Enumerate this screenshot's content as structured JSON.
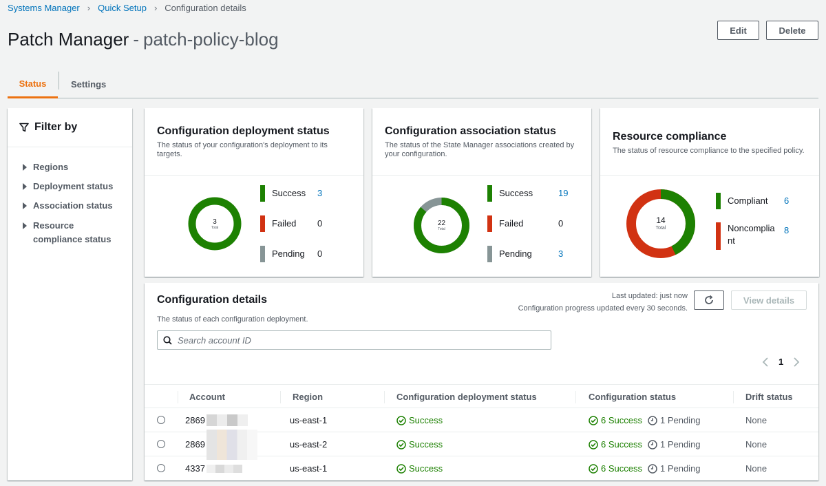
{
  "breadcrumb": {
    "items": [
      "Systems Manager",
      "Quick Setup"
    ],
    "current": "Configuration details"
  },
  "page": {
    "title_main": "Patch Manager",
    "title_dash": "-",
    "title_sub": "patch-policy-blog",
    "edit_label": "Edit",
    "delete_label": "Delete"
  },
  "tabs": [
    {
      "label": "Status",
      "active": true
    },
    {
      "label": "Settings",
      "active": false
    }
  ],
  "filter": {
    "title": "Filter by",
    "items": [
      "Regions",
      "Deployment status",
      "Association status",
      "Resource compliance status"
    ]
  },
  "cards": {
    "deployment": {
      "title": "Configuration deployment status",
      "desc": "The status of your configuration's deployment to its targets.",
      "total": "3",
      "total_label": "Total",
      "legend": [
        {
          "label": "Success",
          "value": "3",
          "color": "#1d8102",
          "link": true
        },
        {
          "label": "Failed",
          "value": "0",
          "color": "#d13212",
          "link": false
        },
        {
          "label": "Pending",
          "value": "0",
          "color": "#879596",
          "link": false
        }
      ]
    },
    "association": {
      "title": "Configuration association status",
      "desc": "The status of the State Manager associations created by your configuration.",
      "total": "22",
      "total_label": "Total",
      "legend": [
        {
          "label": "Success",
          "value": "19",
          "color": "#1d8102",
          "link": true
        },
        {
          "label": "Failed",
          "value": "0",
          "color": "#d13212",
          "link": false
        },
        {
          "label": "Pending",
          "value": "3",
          "color": "#879596",
          "link": true
        }
      ]
    },
    "compliance": {
      "title": "Resource compliance",
      "desc": "The status of resource compliance to the specified policy.",
      "total": "14",
      "total_label": "Total",
      "legend": [
        {
          "label": "Compliant",
          "value": "6",
          "color": "#1d8102",
          "link": true
        },
        {
          "label": "Noncompliant",
          "value": "8",
          "color": "#d13212",
          "link": true
        }
      ]
    }
  },
  "details": {
    "title": "Configuration details",
    "desc": "The status of each configuration deployment.",
    "last_updated": "Last updated: just now",
    "progress_note": "Configuration progress updated every 30 seconds.",
    "view_details_label": "View details",
    "search_placeholder": "Search account ID",
    "page_number": "1",
    "columns": [
      "Account",
      "Region",
      "Configuration deployment status",
      "Configuration status",
      "Drift status"
    ],
    "rows": [
      {
        "account": "2869",
        "region": "us-east-1",
        "deployment": "Success",
        "config_success": "6 Success",
        "config_pending": "1 Pending",
        "drift": "None"
      },
      {
        "account": "2869",
        "region": "us-east-2",
        "deployment": "Success",
        "config_success": "6 Success",
        "config_pending": "1 Pending",
        "drift": "None"
      },
      {
        "account": "4337",
        "region": "us-east-1",
        "deployment": "Success",
        "config_success": "6 Success",
        "config_pending": "1 Pending",
        "drift": "None"
      }
    ]
  }
}
